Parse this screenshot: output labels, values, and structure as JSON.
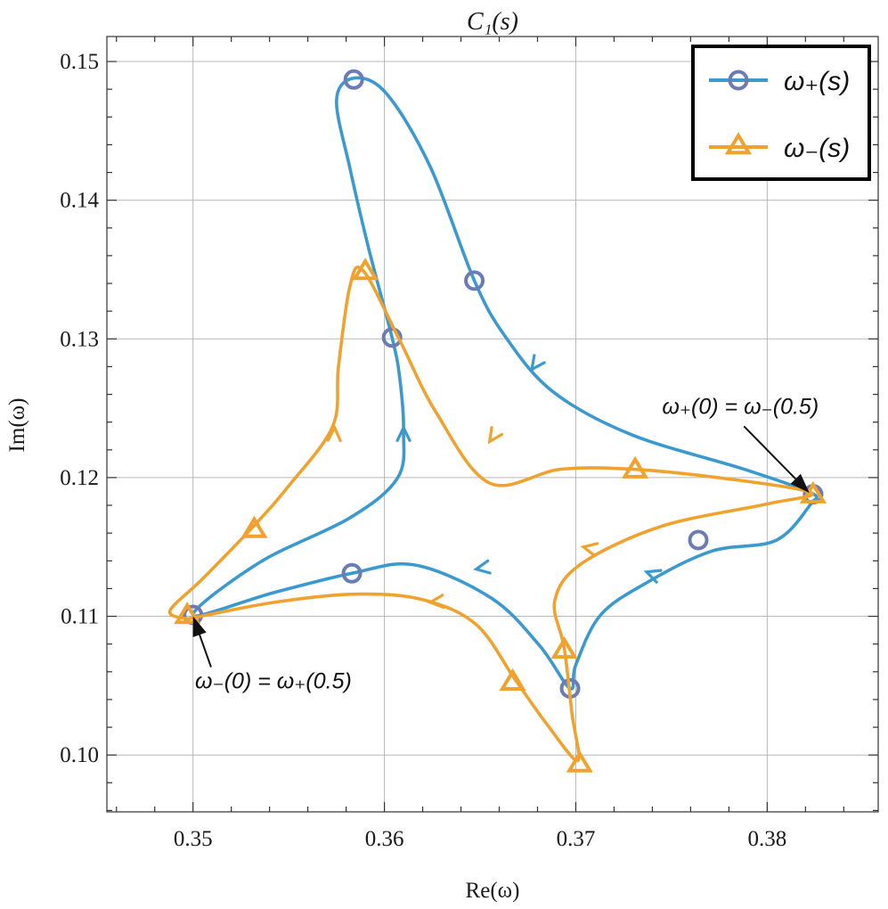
{
  "chart_data": {
    "type": "line",
    "title": "C₁(s)",
    "xlabel": "Re(ω)",
    "ylabel": "Im(ω)",
    "xlim": [
      0.3455,
      0.3858
    ],
    "ylim": [
      0.0959,
      0.1518
    ],
    "x_ticks": [
      0.35,
      0.36,
      0.37,
      0.38
    ],
    "y_ticks": [
      0.1,
      0.11,
      0.12,
      0.13,
      0.14,
      0.15
    ],
    "x_tick_labels": [
      "0.35",
      "0.36",
      "0.37",
      "0.38"
    ],
    "y_tick_labels": [
      "0.10",
      "0.11",
      "0.12",
      "0.13",
      "0.14",
      "0.15"
    ],
    "grid": true,
    "legend_position": "top-right",
    "series": [
      {
        "name": "ω₊(s)",
        "color": "#3a9ad0",
        "marker": "circle",
        "path": [
          [
            0.3824,
            0.1183
          ],
          [
            0.3805,
            0.1155
          ],
          [
            0.3771,
            0.1147
          ],
          [
            0.3738,
            0.1125
          ],
          [
            0.3713,
            0.1101
          ],
          [
            0.37,
            0.1065
          ],
          [
            0.3697,
            0.1048
          ],
          [
            0.3681,
            0.1079
          ],
          [
            0.3656,
            0.1113
          ],
          [
            0.3616,
            0.1137
          ],
          [
            0.3583,
            0.1131
          ],
          [
            0.3542,
            0.1117
          ],
          [
            0.35,
            0.1101
          ],
          [
            0.3535,
            0.1139
          ],
          [
            0.3582,
            0.1171
          ],
          [
            0.3607,
            0.12
          ],
          [
            0.361,
            0.1234
          ],
          [
            0.3608,
            0.1272
          ],
          [
            0.3604,
            0.1301
          ],
          [
            0.3592,
            0.1364
          ],
          [
            0.3582,
            0.1423
          ],
          [
            0.3575,
            0.1472
          ],
          [
            0.3584,
            0.1488
          ],
          [
            0.3601,
            0.1477
          ],
          [
            0.3624,
            0.1424
          ],
          [
            0.3647,
            0.1342
          ],
          [
            0.3663,
            0.1302
          ],
          [
            0.3688,
            0.1262
          ],
          [
            0.3729,
            0.1231
          ],
          [
            0.3788,
            0.1206
          ],
          [
            0.3823,
            0.1189
          ],
          [
            0.3824,
            0.1183
          ]
        ],
        "markers": [
          [
            0.3584,
            0.1487
          ],
          [
            0.3647,
            0.1342
          ],
          [
            0.3604,
            0.1301
          ],
          [
            0.3824,
            0.1188
          ],
          [
            0.3764,
            0.1155
          ],
          [
            0.3697,
            0.1048
          ],
          [
            0.3583,
            0.1131
          ],
          [
            0.35,
            0.1101
          ]
        ],
        "arrows": [
          [
            0.361,
            0.1236,
            90
          ],
          [
            0.3677,
            0.1278,
            234
          ],
          [
            0.3737,
            0.1132,
            160
          ],
          [
            0.3648,
            0.1134,
            190
          ]
        ]
      },
      {
        "name": "ω₋(s)",
        "color": "#f0a22e",
        "marker": "triangle",
        "path": [
          [
            0.3497,
            0.1098
          ],
          [
            0.3542,
            0.111
          ],
          [
            0.3585,
            0.1116
          ],
          [
            0.362,
            0.1112
          ],
          [
            0.3648,
            0.1094
          ],
          [
            0.3668,
            0.1055
          ],
          [
            0.3685,
            0.1022
          ],
          [
            0.3701,
            0.0996
          ],
          [
            0.3698,
            0.103
          ],
          [
            0.3694,
            0.1077
          ],
          [
            0.3689,
            0.1111
          ],
          [
            0.3703,
            0.1138
          ],
          [
            0.3745,
            0.1165
          ],
          [
            0.38,
            0.1181
          ],
          [
            0.3823,
            0.1189
          ],
          [
            0.378,
            0.1199
          ],
          [
            0.373,
            0.1206
          ],
          [
            0.3692,
            0.1206
          ],
          [
            0.3655,
            0.1196
          ],
          [
            0.3627,
            0.1247
          ],
          [
            0.3608,
            0.1299
          ],
          [
            0.3589,
            0.1349
          ],
          [
            0.3582,
            0.1338
          ],
          [
            0.3576,
            0.128
          ],
          [
            0.3573,
            0.1237
          ],
          [
            0.355,
            0.1194
          ],
          [
            0.3531,
            0.1164
          ],
          [
            0.3505,
            0.1127
          ],
          [
            0.3488,
            0.1104
          ],
          [
            0.3497,
            0.1098
          ]
        ],
        "markers": [
          [
            0.3497,
            0.1101
          ],
          [
            0.3532,
            0.1163
          ],
          [
            0.359,
            0.1349
          ],
          [
            0.3731,
            0.1206
          ],
          [
            0.3824,
            0.1188
          ],
          [
            0.3694,
            0.1076
          ],
          [
            0.3667,
            0.1053
          ],
          [
            0.3702,
            0.0994
          ]
        ],
        "arrows": [
          [
            0.3574,
            0.1236,
            88
          ],
          [
            0.3655,
            0.1226,
            236
          ],
          [
            0.3704,
            0.115,
            168
          ],
          [
            0.3624,
            0.111,
            185
          ]
        ]
      }
    ],
    "annotations": [
      {
        "text": "ω₊(0) = ω₋(0.5)",
        "xy": [
          0.3822,
          0.1189
        ],
        "text_xy": [
          0.3786,
          0.1246
        ]
      },
      {
        "text": "ω₋(0) = ω₊(0.5)",
        "xy": [
          0.35,
          0.11
        ],
        "text_xy": [
          0.3542,
          0.1048
        ]
      }
    ]
  }
}
